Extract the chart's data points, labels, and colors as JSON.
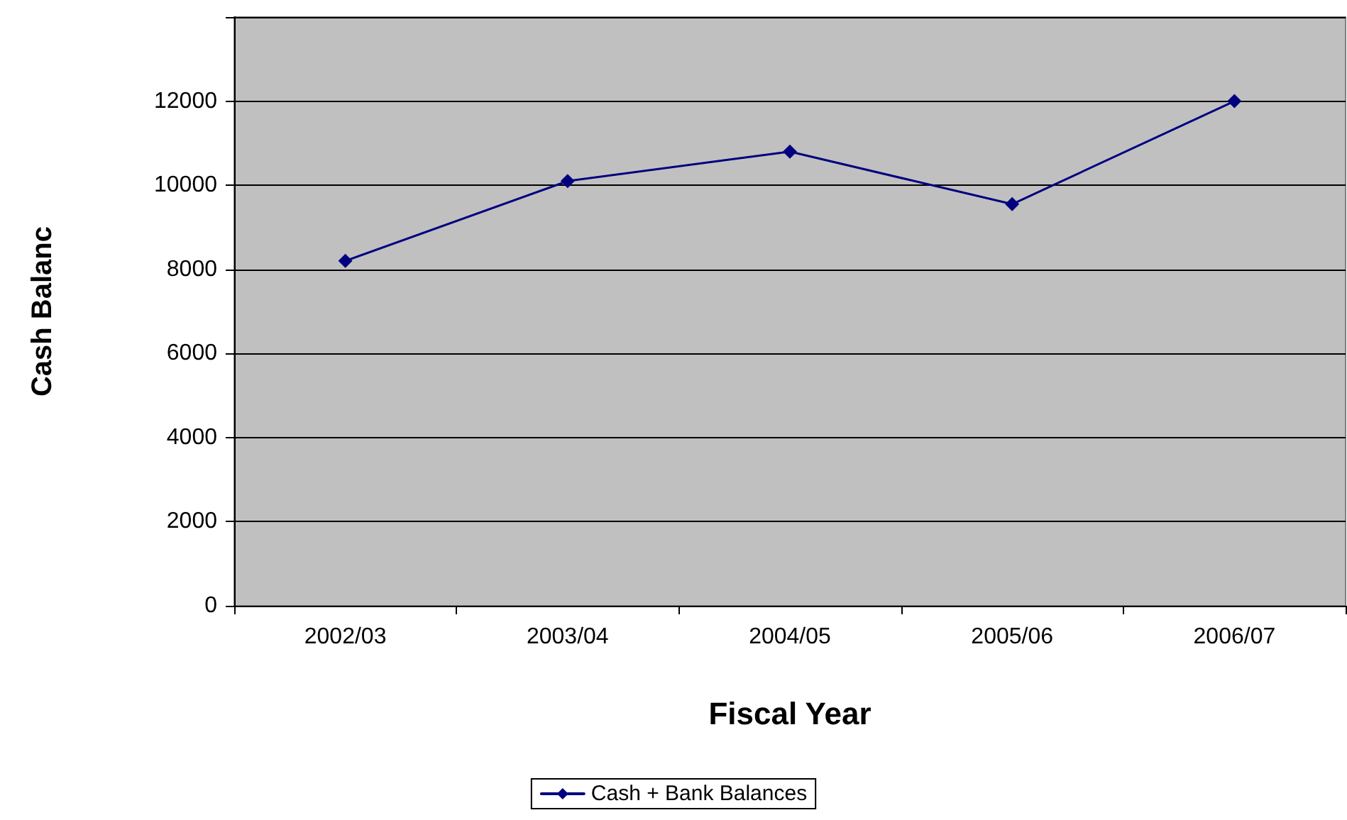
{
  "chart_data": {
    "type": "line",
    "xlabel": "Fiscal Year",
    "ylabel": "Cash Balanc",
    "categories": [
      "2002/03",
      "2003/04",
      "2004/05",
      "2005/06",
      "2006/07"
    ],
    "series": [
      {
        "name": "Cash + Bank Balances",
        "color": "#000080",
        "values": [
          8200,
          10100,
          10800,
          9550,
          12000
        ]
      }
    ],
    "ylim": [
      0,
      14000
    ],
    "yticks": [
      0,
      2000,
      4000,
      6000,
      8000,
      10000,
      12000,
      {
        "value": 14000,
        "label": null
      }
    ],
    "grid": "y",
    "legend": "bottom",
    "marker": "diamond",
    "line_style": "solid"
  }
}
